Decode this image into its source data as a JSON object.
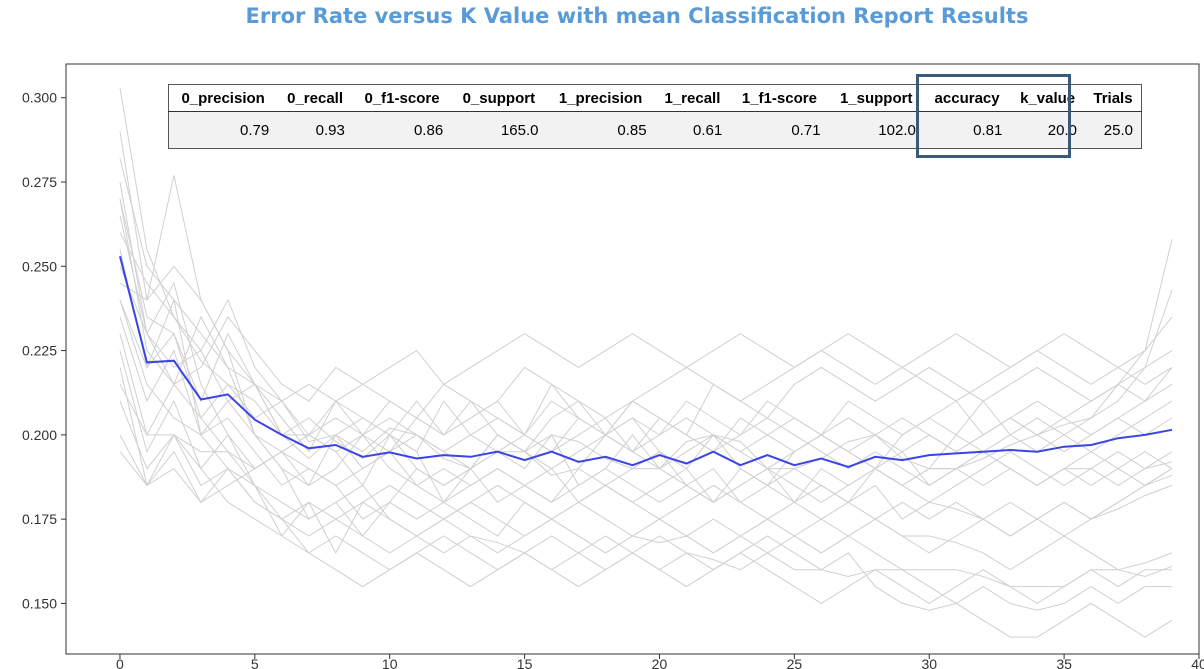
{
  "chart_data": {
    "type": "line",
    "title": "Error Rate versus K Value with mean Classification Report Results",
    "xlim": [
      -2,
      40
    ],
    "ylim": [
      0.135,
      0.31
    ],
    "x_ticks": [
      0,
      5,
      10,
      15,
      20,
      25,
      30,
      35,
      40
    ],
    "y_ticks": [
      0.15,
      0.175,
      0.2,
      0.225,
      0.25,
      0.275,
      0.3
    ],
    "y_tick_labels": [
      "0.150",
      "0.175",
      "0.200",
      "0.225",
      "0.250",
      "0.275",
      "0.300"
    ],
    "x": [
      0,
      1,
      2,
      3,
      4,
      5,
      6,
      7,
      8,
      9,
      10,
      11,
      12,
      13,
      14,
      15,
      16,
      17,
      18,
      19,
      20,
      21,
      22,
      23,
      24,
      25,
      26,
      27,
      28,
      29,
      30,
      31,
      32,
      33,
      34,
      35,
      36,
      37,
      38,
      39
    ],
    "series": [
      {
        "kind": "mean",
        "color": "#3b44e6",
        "values": [
          0.253,
          0.2215,
          0.222,
          0.2105,
          0.212,
          0.2045,
          0.2,
          0.196,
          0.197,
          0.1935,
          0.1948,
          0.193,
          0.194,
          0.1935,
          0.195,
          0.1925,
          0.195,
          0.192,
          0.1935,
          0.191,
          0.194,
          0.1915,
          0.195,
          0.191,
          0.194,
          0.191,
          0.193,
          0.1905,
          0.1935,
          0.1925,
          0.194,
          0.1945,
          0.195,
          0.1955,
          0.195,
          0.1965,
          0.197,
          0.199,
          0.2,
          0.2015
        ]
      },
      {
        "kind": "trial",
        "color": "#d0d0d0",
        "values": [
          0.303,
          0.255,
          0.235,
          0.222,
          0.215,
          0.205,
          0.21,
          0.198,
          0.2,
          0.195,
          0.202,
          0.2,
          0.193,
          0.19,
          0.195,
          0.195,
          0.2,
          0.198,
          0.193,
          0.19,
          0.19,
          0.195,
          0.2,
          0.198,
          0.19,
          0.19,
          0.193,
          0.198,
          0.2,
          0.193,
          0.19,
          0.19,
          0.193,
          0.197,
          0.2,
          0.203,
          0.205,
          0.215,
          0.225,
          0.258
        ]
      },
      {
        "kind": "trial",
        "color": "#d0d0d0",
        "values": [
          0.29,
          0.24,
          0.277,
          0.24,
          0.225,
          0.215,
          0.2,
          0.193,
          0.2,
          0.205,
          0.2,
          0.195,
          0.18,
          0.19,
          0.2,
          0.195,
          0.188,
          0.19,
          0.2,
          0.195,
          0.19,
          0.198,
          0.2,
          0.19,
          0.185,
          0.195,
          0.2,
          0.195,
          0.19,
          0.185,
          0.19,
          0.2,
          0.21,
          0.2,
          0.195,
          0.2,
          0.205,
          0.21,
          0.22,
          0.243
        ]
      },
      {
        "kind": "trial",
        "color": "#d0d0d0",
        "values": [
          0.275,
          0.23,
          0.245,
          0.215,
          0.2,
          0.185,
          0.17,
          0.18,
          0.165,
          0.18,
          0.175,
          0.17,
          0.165,
          0.17,
          0.168,
          0.165,
          0.16,
          0.165,
          0.17,
          0.165,
          0.16,
          0.165,
          0.163,
          0.16,
          0.165,
          0.16,
          0.16,
          0.158,
          0.16,
          0.16,
          0.16,
          0.16,
          0.158,
          0.155,
          0.155,
          0.155,
          0.16,
          0.16,
          0.158,
          0.161
        ]
      },
      {
        "kind": "trial",
        "color": "#d0d0d0",
        "values": [
          0.27,
          0.235,
          0.23,
          0.21,
          0.23,
          0.215,
          0.2,
          0.205,
          0.198,
          0.193,
          0.2,
          0.19,
          0.185,
          0.19,
          0.195,
          0.19,
          0.2,
          0.185,
          0.19,
          0.185,
          0.18,
          0.185,
          0.19,
          0.18,
          0.185,
          0.19,
          0.185,
          0.18,
          0.19,
          0.185,
          0.19,
          0.19,
          0.185,
          0.19,
          0.185,
          0.19,
          0.19,
          0.185,
          0.19,
          0.192
        ]
      },
      {
        "kind": "trial",
        "color": "#d0d0d0",
        "values": [
          0.265,
          0.23,
          0.215,
          0.235,
          0.22,
          0.2,
          0.19,
          0.175,
          0.18,
          0.17,
          0.18,
          0.175,
          0.18,
          0.175,
          0.17,
          0.18,
          0.175,
          0.17,
          0.165,
          0.17,
          0.175,
          0.17,
          0.165,
          0.17,
          0.175,
          0.17,
          0.165,
          0.17,
          0.175,
          0.17,
          0.17,
          0.168,
          0.165,
          0.16,
          0.165,
          0.17,
          0.165,
          0.16,
          0.162,
          0.165
        ]
      },
      {
        "kind": "trial",
        "color": "#d0d0d0",
        "values": [
          0.255,
          0.22,
          0.24,
          0.2,
          0.21,
          0.215,
          0.205,
          0.195,
          0.21,
          0.2,
          0.195,
          0.205,
          0.2,
          0.21,
          0.2,
          0.195,
          0.205,
          0.21,
          0.2,
          0.205,
          0.2,
          0.21,
          0.205,
          0.2,
          0.21,
          0.205,
          0.2,
          0.21,
          0.205,
          0.2,
          0.205,
          0.21,
          0.2,
          0.205,
          0.21,
          0.205,
          0.21,
          0.215,
          0.21,
          0.22
        ]
      },
      {
        "kind": "trial",
        "color": "#d0d0d0",
        "values": [
          0.245,
          0.24,
          0.25,
          0.24,
          0.225,
          0.2,
          0.195,
          0.185,
          0.2,
          0.19,
          0.195,
          0.185,
          0.19,
          0.185,
          0.19,
          0.185,
          0.18,
          0.19,
          0.185,
          0.18,
          0.185,
          0.19,
          0.18,
          0.185,
          0.19,
          0.18,
          0.175,
          0.18,
          0.185,
          0.175,
          0.18,
          0.178,
          0.175,
          0.17,
          0.175,
          0.18,
          0.175,
          0.178,
          0.182,
          0.185
        ]
      },
      {
        "kind": "trial",
        "color": "#d0d0d0",
        "values": [
          0.24,
          0.22,
          0.23,
          0.205,
          0.215,
          0.21,
          0.2,
          0.2,
          0.195,
          0.185,
          0.2,
          0.195,
          0.21,
          0.2,
          0.195,
          0.2,
          0.215,
          0.205,
          0.2,
          0.21,
          0.205,
          0.2,
          0.215,
          0.21,
          0.205,
          0.215,
          0.22,
          0.215,
          0.21,
          0.215,
          0.22,
          0.215,
          0.21,
          0.215,
          0.22,
          0.215,
          0.21,
          0.215,
          0.22,
          0.225
        ]
      },
      {
        "kind": "trial",
        "color": "#d0d0d0",
        "values": [
          0.235,
          0.21,
          0.225,
          0.2,
          0.205,
          0.195,
          0.185,
          0.19,
          0.185,
          0.175,
          0.18,
          0.19,
          0.185,
          0.19,
          0.18,
          0.185,
          0.19,
          0.18,
          0.185,
          0.19,
          0.195,
          0.185,
          0.18,
          0.19,
          0.185,
          0.18,
          0.19,
          0.185,
          0.19,
          0.195,
          0.185,
          0.19,
          0.195,
          0.19,
          0.185,
          0.19,
          0.185,
          0.19,
          0.195,
          0.19
        ]
      },
      {
        "kind": "trial",
        "color": "#d0d0d0",
        "values": [
          0.23,
          0.2,
          0.215,
          0.205,
          0.195,
          0.185,
          0.18,
          0.175,
          0.18,
          0.185,
          0.175,
          0.17,
          0.175,
          0.18,
          0.175,
          0.17,
          0.175,
          0.18,
          0.175,
          0.17,
          0.168,
          0.17,
          0.175,
          0.17,
          0.165,
          0.17,
          0.175,
          0.17,
          0.165,
          0.16,
          0.155,
          0.15,
          0.145,
          0.14,
          0.14,
          0.145,
          0.15,
          0.145,
          0.14,
          0.145
        ]
      },
      {
        "kind": "trial",
        "color": "#d0d0d0",
        "values": [
          0.225,
          0.195,
          0.21,
          0.19,
          0.2,
          0.19,
          0.195,
          0.2,
          0.21,
          0.205,
          0.2,
          0.21,
          0.2,
          0.205,
          0.21,
          0.2,
          0.195,
          0.205,
          0.2,
          0.195,
          0.205,
          0.2,
          0.195,
          0.205,
          0.2,
          0.195,
          0.2,
          0.205,
          0.2,
          0.195,
          0.2,
          0.195,
          0.2,
          0.205,
          0.2,
          0.205,
          0.2,
          0.205,
          0.2,
          0.205
        ]
      },
      {
        "kind": "trial",
        "color": "#d0d0d0",
        "values": [
          0.22,
          0.185,
          0.195,
          0.18,
          0.19,
          0.185,
          0.175,
          0.165,
          0.17,
          0.165,
          0.16,
          0.165,
          0.17,
          0.165,
          0.16,
          0.165,
          0.17,
          0.165,
          0.16,
          0.165,
          0.17,
          0.165,
          0.16,
          0.165,
          0.17,
          0.165,
          0.16,
          0.165,
          0.155,
          0.15,
          0.148,
          0.15,
          0.155,
          0.15,
          0.148,
          0.15,
          0.155,
          0.15,
          0.155,
          0.155
        ]
      },
      {
        "kind": "trial",
        "color": "#d0d0d0",
        "values": [
          0.215,
          0.2,
          0.2,
          0.195,
          0.195,
          0.19,
          0.195,
          0.19,
          0.185,
          0.19,
          0.195,
          0.2,
          0.195,
          0.19,
          0.2,
          0.195,
          0.19,
          0.195,
          0.2,
          0.205,
          0.195,
          0.19,
          0.2,
          0.195,
          0.19,
          0.195,
          0.2,
          0.195,
          0.19,
          0.2,
          0.205,
          0.2,
          0.195,
          0.2,
          0.205,
          0.2,
          0.195,
          0.2,
          0.205,
          0.21
        ]
      },
      {
        "kind": "trial",
        "color": "#d0d0d0",
        "values": [
          0.21,
          0.19,
          0.2,
          0.185,
          0.19,
          0.18,
          0.175,
          0.17,
          0.175,
          0.18,
          0.185,
          0.18,
          0.175,
          0.18,
          0.185,
          0.18,
          0.175,
          0.18,
          0.185,
          0.18,
          0.175,
          0.18,
          0.185,
          0.18,
          0.175,
          0.18,
          0.185,
          0.18,
          0.175,
          0.18,
          0.175,
          0.18,
          0.175,
          0.17,
          0.175,
          0.18,
          0.175,
          0.18,
          0.185,
          0.188
        ]
      },
      {
        "kind": "trial",
        "color": "#d0d0d0",
        "values": [
          0.2,
          0.185,
          0.19,
          0.18,
          0.185,
          0.19,
          0.195,
          0.2,
          0.205,
          0.2,
          0.21,
          0.205,
          0.2,
          0.205,
          0.21,
          0.22,
          0.215,
          0.21,
          0.205,
          0.21,
          0.215,
          0.22,
          0.215,
          0.21,
          0.215,
          0.22,
          0.225,
          0.22,
          0.215,
          0.22,
          0.215,
          0.21,
          0.215,
          0.22,
          0.225,
          0.22,
          0.215,
          0.22,
          0.225,
          0.235
        ]
      },
      {
        "kind": "trial",
        "color": "#d0d0d0",
        "values": [
          0.195,
          0.185,
          0.2,
          0.19,
          0.18,
          0.175,
          0.17,
          0.165,
          0.16,
          0.155,
          0.16,
          0.165,
          0.16,
          0.155,
          0.16,
          0.165,
          0.16,
          0.155,
          0.16,
          0.165,
          0.16,
          0.155,
          0.16,
          0.165,
          0.16,
          0.155,
          0.15,
          0.155,
          0.16,
          0.155,
          0.15,
          0.155,
          0.16,
          0.155,
          0.15,
          0.155,
          0.16,
          0.155,
          0.16,
          0.16
        ]
      },
      {
        "kind": "trial",
        "color": "#d0d0d0",
        "values": [
          0.26,
          0.245,
          0.235,
          0.225,
          0.24,
          0.22,
          0.21,
          0.215,
          0.21,
          0.215,
          0.22,
          0.225,
          0.215,
          0.22,
          0.225,
          0.23,
          0.225,
          0.22,
          0.225,
          0.23,
          0.225,
          0.22,
          0.225,
          0.23,
          0.225,
          0.22,
          0.225,
          0.23,
          0.225,
          0.22,
          0.225,
          0.23,
          0.225,
          0.22,
          0.225,
          0.23,
          0.225,
          0.22,
          0.215,
          0.22
        ]
      },
      {
        "kind": "trial",
        "color": "#d0d0d0",
        "values": [
          0.25,
          0.23,
          0.22,
          0.225,
          0.21,
          0.2,
          0.19,
          0.185,
          0.19,
          0.2,
          0.19,
          0.185,
          0.18,
          0.185,
          0.19,
          0.185,
          0.18,
          0.185,
          0.19,
          0.2,
          0.19,
          0.185,
          0.18,
          0.185,
          0.19,
          0.185,
          0.18,
          0.185,
          0.19,
          0.185,
          0.18,
          0.185,
          0.19,
          0.195,
          0.19,
          0.185,
          0.19,
          0.195,
          0.19,
          0.195
        ]
      },
      {
        "kind": "trial",
        "color": "#d0d0d0",
        "values": [
          0.282,
          0.25,
          0.24,
          0.23,
          0.22,
          0.215,
          0.21,
          0.2,
          0.195,
          0.2,
          0.205,
          0.2,
          0.195,
          0.2,
          0.205,
          0.2,
          0.195,
          0.2,
          0.205,
          0.195,
          0.2,
          0.205,
          0.2,
          0.195,
          0.2,
          0.205,
          0.2,
          0.195,
          0.2,
          0.205,
          0.2,
          0.195,
          0.2,
          0.205,
          0.2,
          0.195,
          0.2,
          0.205,
          0.21,
          0.215
        ]
      },
      {
        "kind": "trial",
        "color": "#d0d0d0",
        "values": [
          0.27,
          0.225,
          0.215,
          0.22,
          0.235,
          0.225,
          0.215,
          0.21,
          0.22,
          0.215,
          0.21,
          0.205,
          0.215,
          0.21,
          0.205,
          0.2,
          0.21,
          0.205,
          0.2,
          0.21,
          0.205,
          0.2,
          0.195,
          0.2,
          0.205,
          0.2,
          0.195,
          0.19,
          0.195,
          0.19,
          0.185,
          0.19,
          0.195,
          0.19,
          0.185,
          0.19,
          0.195,
          0.19,
          0.185,
          0.19
        ]
      },
      {
        "kind": "trial",
        "color": "#d0d0d0",
        "values": [
          0.24,
          0.215,
          0.205,
          0.2,
          0.19,
          0.18,
          0.175,
          0.18,
          0.175,
          0.17,
          0.165,
          0.17,
          0.175,
          0.17,
          0.165,
          0.17,
          0.175,
          0.17,
          0.165,
          0.17,
          0.175,
          0.17,
          0.165,
          0.17,
          0.175,
          0.17,
          0.165,
          0.17,
          0.175,
          0.17,
          0.165,
          0.17,
          0.175,
          0.18,
          0.175,
          0.17,
          0.175,
          0.18,
          0.185,
          0.19
        ]
      }
    ]
  },
  "report_table": {
    "headers": [
      "0_precision",
      "0_recall",
      "0_f1-score",
      "0_support",
      "1_precision",
      "1_recall",
      "1_f1-score",
      "1_support",
      "accuracy",
      "k_value",
      "Trials"
    ],
    "values": [
      "0.79",
      "0.93",
      "0.86",
      "165.0",
      "0.85",
      "0.61",
      "0.71",
      "102.0",
      "0.81",
      "20.0",
      "25.0"
    ]
  },
  "colors": {
    "title": "#5b9bd5",
    "mean_line": "#3b44e6",
    "trial_lines": "#d0d0d0",
    "highlight_box": "#3a5a7a"
  }
}
